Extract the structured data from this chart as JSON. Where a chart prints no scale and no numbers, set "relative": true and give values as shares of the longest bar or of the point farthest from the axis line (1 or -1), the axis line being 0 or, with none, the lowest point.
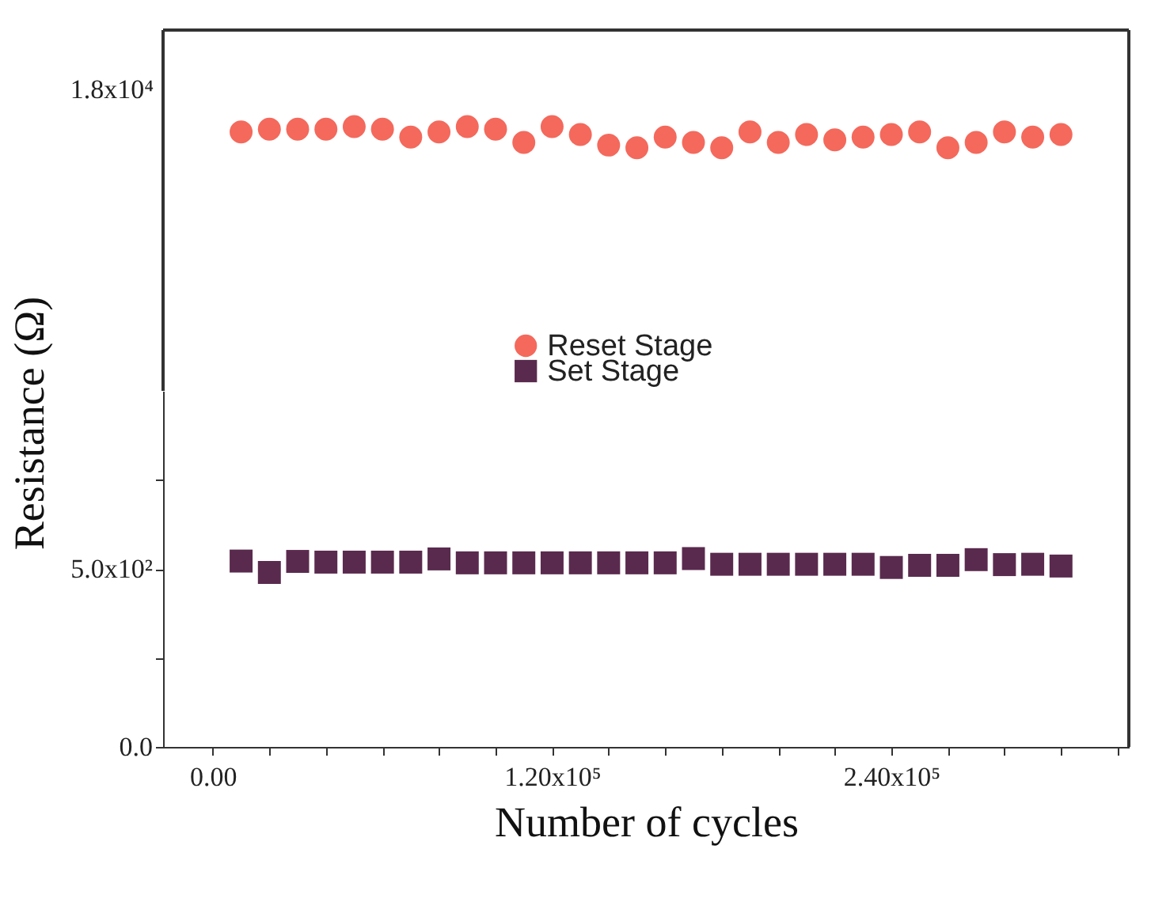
{
  "chart_data": [
    {
      "type": "scatter",
      "ylabel": "Resistance (Ω)",
      "relative": true,
      "x": [
        10000,
        20000,
        30000,
        40000,
        50000,
        60000,
        70000,
        80000,
        90000,
        100000,
        110000,
        120000,
        130000,
        140000,
        150000,
        160000,
        170000,
        180000,
        190000,
        200000,
        210000,
        220000,
        230000,
        240000,
        250000,
        260000,
        270000,
        280000,
        290000,
        300000
      ],
      "series": [
        {
          "name": "Reset Stage",
          "color": "#f4695c",
          "marker": "circle",
          "values": [
            0.98,
            0.99,
            0.99,
            0.99,
            1,
            0.99,
            0.96,
            0.98,
            1,
            0.99,
            0.94,
            1,
            0.97,
            0.93,
            0.92,
            0.96,
            0.94,
            0.92,
            0.98,
            0.94,
            0.97,
            0.95,
            0.96,
            0.97,
            0.98,
            0.92,
            0.94,
            0.98,
            0.96,
            0.97
          ]
        }
      ],
      "xlim": [
        -17600,
        324000
      ],
      "annotations": [
        "1.8x10⁴"
      ],
      "legend": "bottom",
      "grid": false
    },
    {
      "type": "scatter",
      "xlabel": "Number of cycles",
      "x": [
        10000,
        20000,
        30000,
        40000,
        50000,
        60000,
        70000,
        80000,
        90000,
        100000,
        110000,
        120000,
        130000,
        140000,
        150000,
        160000,
        170000,
        180000,
        190000,
        200000,
        210000,
        220000,
        230000,
        240000,
        250000,
        260000,
        270000,
        280000,
        290000,
        300000
      ],
      "series": [
        {
          "name": "Set Stage",
          "color": "#5a2a4e",
          "marker": "square",
          "values": [
            522,
            490,
            521,
            519,
            519,
            519,
            519,
            528,
            517,
            517,
            517,
            517,
            517,
            517,
            517,
            517,
            529,
            513,
            513,
            513,
            513,
            513,
            513,
            504,
            510,
            510,
            526,
            512,
            513,
            508
          ]
        }
      ],
      "xlim": [
        -17600,
        324000
      ],
      "xticks": [
        {
          "value": 0,
          "label": "0.00"
        },
        {
          "value": 20000,
          "label": null
        },
        {
          "value": 40000,
          "label": null
        },
        {
          "value": 60000,
          "label": null
        },
        {
          "value": 80000,
          "label": null
        },
        {
          "value": 100000,
          "label": null
        },
        {
          "value": 120000,
          "label": "1.20x10⁵"
        },
        {
          "value": 140000,
          "label": null
        },
        {
          "value": 160000,
          "label": null
        },
        {
          "value": 180000,
          "label": null
        },
        {
          "value": 200000,
          "label": null
        },
        {
          "value": 220000,
          "label": null
        },
        {
          "value": 240000,
          "label": "2.40x10⁵"
        },
        {
          "value": 260000,
          "label": null
        },
        {
          "value": 280000,
          "label": null
        },
        {
          "value": 300000,
          "label": null
        },
        {
          "value": 320000,
          "label": null
        }
      ],
      "ylim": [
        0,
        1000
      ],
      "yticks": [
        {
          "value": 0,
          "label": "0.0"
        },
        {
          "value": 250,
          "label": null
        },
        {
          "value": 500,
          "label": "5.0x10²"
        },
        {
          "value": 750,
          "label": null
        }
      ],
      "legend": "top",
      "grid": false
    }
  ]
}
